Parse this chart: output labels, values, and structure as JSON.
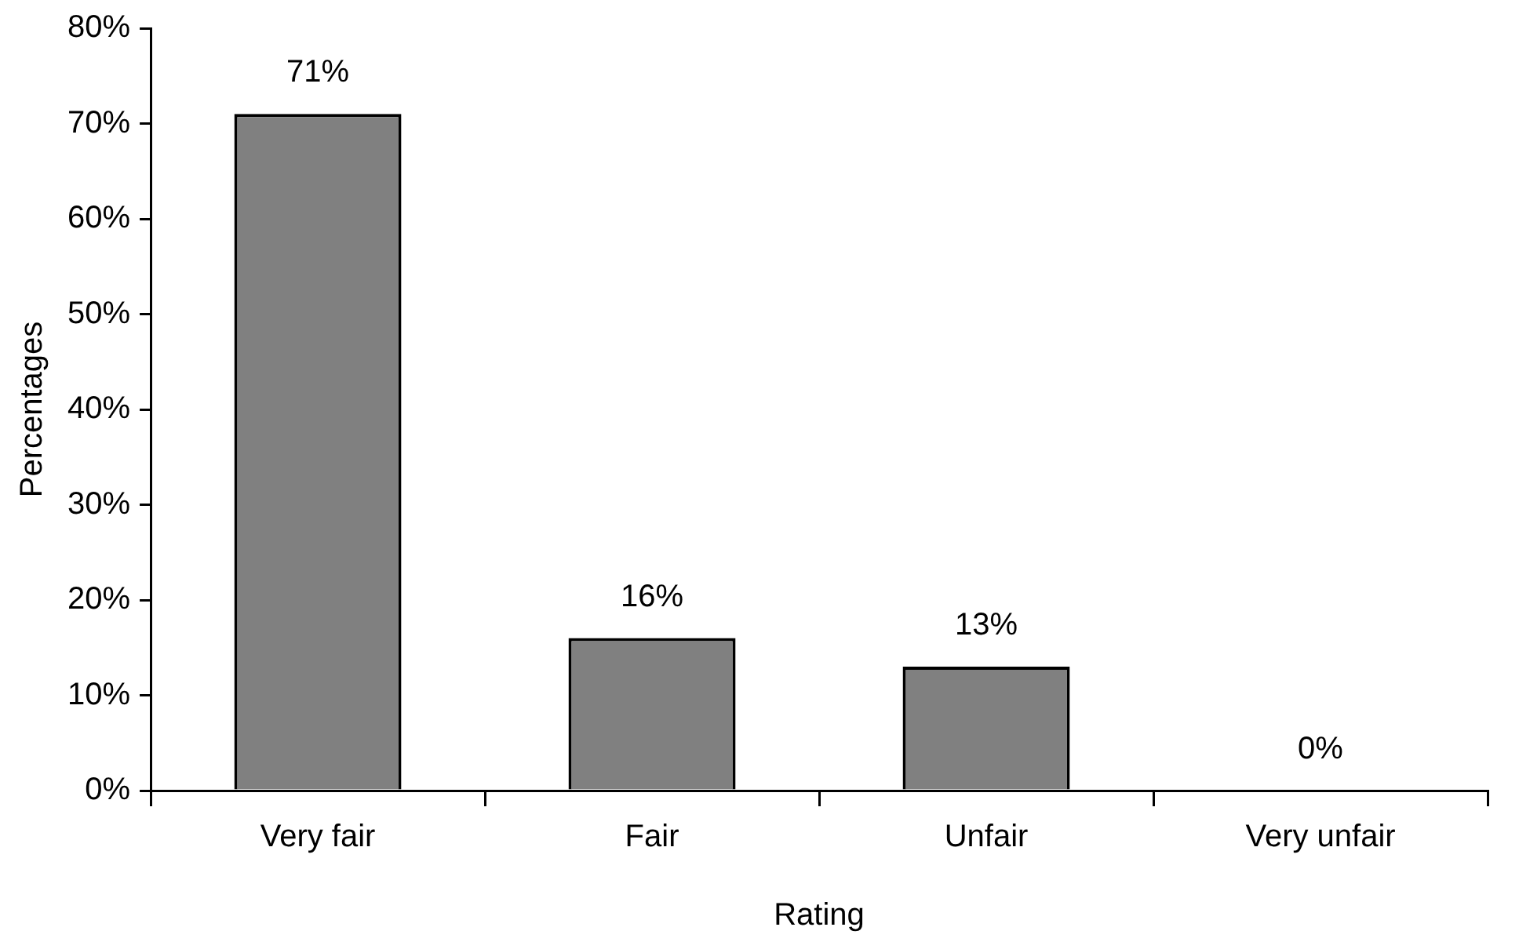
{
  "chart_data": {
    "type": "bar",
    "xlabel": "Rating",
    "ylabel": "Percentages",
    "categories": [
      "Very fair",
      "Fair",
      "Unfair",
      "Very unfair"
    ],
    "values": [
      71,
      16,
      13,
      0
    ],
    "color": "#808080",
    "value_labels": [
      "71%",
      "16%",
      "13%",
      "0%"
    ],
    "ylim": [
      0,
      80
    ],
    "yticks": [
      {
        "value": 0,
        "label": "0%"
      },
      {
        "value": 10,
        "label": "10%"
      },
      {
        "value": 20,
        "label": "20%"
      },
      {
        "value": 30,
        "label": "30%"
      },
      {
        "value": 40,
        "label": "40%"
      },
      {
        "value": 50,
        "label": "50%"
      },
      {
        "value": 60,
        "label": "60%"
      },
      {
        "value": 70,
        "label": "70%"
      },
      {
        "value": 80,
        "label": "80%"
      }
    ],
    "grid": false,
    "legend": false
  }
}
